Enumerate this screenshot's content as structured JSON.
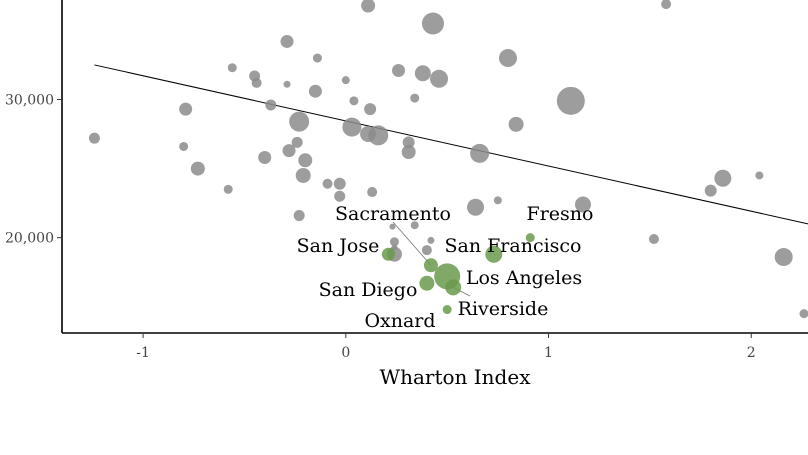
{
  "chart_data": {
    "type": "scatter",
    "title": "",
    "xlabel": "Wharton Index",
    "ylabel": "",
    "xlim": [
      -1.4,
      2.28
    ],
    "ylim": [
      13100,
      37200
    ],
    "x_ticks": [
      {
        "value": -1,
        "label": "-1"
      },
      {
        "value": 0,
        "label": "0"
      },
      {
        "value": 1,
        "label": "1"
      },
      {
        "value": 2,
        "label": "2"
      }
    ],
    "y_ticks": [
      {
        "value": 20000,
        "label": "20,000"
      },
      {
        "value": 30000,
        "label": "30,000"
      }
    ],
    "grid": false,
    "colors": {
      "other": "#8c8c8c",
      "california": "#6a9a4c",
      "trend": "#000000",
      "axis": "#000000"
    },
    "trend_line": {
      "x": [
        -1.24,
        2.28
      ],
      "y": [
        32500,
        21000
      ]
    },
    "series": [
      {
        "group": "other",
        "points": [
          {
            "x": 0.11,
            "y": 36800,
            "size": 14
          },
          {
            "x": 1.58,
            "y": 36900,
            "size": 10
          },
          {
            "x": 0.43,
            "y": 35500,
            "size": 22
          },
          {
            "x": -0.29,
            "y": 34200,
            "size": 13
          },
          {
            "x": 0.8,
            "y": 33000,
            "size": 18
          },
          {
            "x": -0.14,
            "y": 33000,
            "size": 9
          },
          {
            "x": -0.56,
            "y": 32300,
            "size": 9
          },
          {
            "x": -0.45,
            "y": 31700,
            "size": 11
          },
          {
            "x": -0.44,
            "y": 31200,
            "size": 10
          },
          {
            "x": 0.26,
            "y": 32100,
            "size": 13
          },
          {
            "x": 0.38,
            "y": 31900,
            "size": 16
          },
          {
            "x": 0.46,
            "y": 31500,
            "size": 18
          },
          {
            "x": 0.0,
            "y": 31400,
            "size": 8
          },
          {
            "x": -0.29,
            "y": 31100,
            "size": 7
          },
          {
            "x": -0.15,
            "y": 30600,
            "size": 13
          },
          {
            "x": 0.34,
            "y": 30100,
            "size": 9
          },
          {
            "x": 1.11,
            "y": 29900,
            "size": 28
          },
          {
            "x": -0.79,
            "y": 29300,
            "size": 13
          },
          {
            "x": -0.37,
            "y": 29600,
            "size": 11
          },
          {
            "x": 0.04,
            "y": 29900,
            "size": 9
          },
          {
            "x": 0.12,
            "y": 29300,
            "size": 12
          },
          {
            "x": -0.23,
            "y": 28400,
            "size": 20
          },
          {
            "x": 0.03,
            "y": 28000,
            "size": 19
          },
          {
            "x": 0.11,
            "y": 27500,
            "size": 16
          },
          {
            "x": 0.84,
            "y": 28200,
            "size": 15
          },
          {
            "x": 0.16,
            "y": 27400,
            "size": 20
          },
          {
            "x": -1.24,
            "y": 27200,
            "size": 11
          },
          {
            "x": -0.24,
            "y": 26900,
            "size": 11
          },
          {
            "x": 0.31,
            "y": 26900,
            "size": 12
          },
          {
            "x": -0.8,
            "y": 26600,
            "size": 9
          },
          {
            "x": -0.28,
            "y": 26300,
            "size": 13
          },
          {
            "x": 0.31,
            "y": 26200,
            "size": 14
          },
          {
            "x": 0.66,
            "y": 26100,
            "size": 19
          },
          {
            "x": -0.2,
            "y": 25600,
            "size": 14
          },
          {
            "x": -0.4,
            "y": 25800,
            "size": 13
          },
          {
            "x": -0.73,
            "y": 25000,
            "size": 14
          },
          {
            "x": -0.21,
            "y": 24500,
            "size": 15
          },
          {
            "x": 1.86,
            "y": 24300,
            "size": 17
          },
          {
            "x": 2.04,
            "y": 24500,
            "size": 8
          },
          {
            "x": -0.09,
            "y": 23900,
            "size": 10
          },
          {
            "x": -0.03,
            "y": 23900,
            "size": 12
          },
          {
            "x": -0.58,
            "y": 23500,
            "size": 9
          },
          {
            "x": 1.8,
            "y": 23400,
            "size": 12
          },
          {
            "x": -0.03,
            "y": 23000,
            "size": 11
          },
          {
            "x": 0.13,
            "y": 23300,
            "size": 10
          },
          {
            "x": 0.75,
            "y": 22700,
            "size": 8
          },
          {
            "x": 1.17,
            "y": 22400,
            "size": 16
          },
          {
            "x": 0.64,
            "y": 22200,
            "size": 17
          },
          {
            "x": -0.23,
            "y": 21600,
            "size": 11
          },
          {
            "x": 1.52,
            "y": 19900,
            "size": 10
          },
          {
            "x": 0.24,
            "y": 19700,
            "size": 9
          },
          {
            "x": 0.24,
            "y": 18800,
            "size": 15
          },
          {
            "x": 0.24,
            "y": 19300,
            "size": 6
          },
          {
            "x": 2.16,
            "y": 18600,
            "size": 18
          },
          {
            "x": 0.4,
            "y": 19100,
            "size": 10
          },
          {
            "x": 0.34,
            "y": 20900,
            "size": 8
          },
          {
            "x": 2.26,
            "y": 14500,
            "size": 9
          },
          {
            "x": 0.23,
            "y": 20800,
            "size": 6
          },
          {
            "x": 0.42,
            "y": 19800,
            "size": 7
          }
        ]
      },
      {
        "group": "california",
        "points": [
          {
            "name": "Fresno",
            "x": 0.91,
            "y": 20000,
            "size": 9
          },
          {
            "name": "Sacramento",
            "x": 0.42,
            "y": 18000,
            "size": 14
          },
          {
            "name": "San Jose",
            "x": 0.21,
            "y": 18800,
            "size": 13
          },
          {
            "name": "San Francisco",
            "x": 0.73,
            "y": 18800,
            "size": 17
          },
          {
            "name": "Los Angeles",
            "x": 0.5,
            "y": 17200,
            "size": 26
          },
          {
            "name": "San Diego",
            "x": 0.4,
            "y": 16700,
            "size": 15
          },
          {
            "name": "Riverside",
            "x": 0.53,
            "y": 16400,
            "size": 16
          },
          {
            "name": "Oxnard",
            "x": 0.5,
            "y": 14800,
            "size": 9
          }
        ]
      }
    ],
    "annotations": [
      {
        "text": "Sacramento",
        "anchor": "Sacramento"
      },
      {
        "text": "Fresno",
        "anchor": "Fresno"
      },
      {
        "text": "San Jose",
        "anchor": "San Jose"
      },
      {
        "text": "San Francisco",
        "anchor": "San Francisco"
      },
      {
        "text": "Los Angeles",
        "anchor": "Los Angeles"
      },
      {
        "text": "San Diego",
        "anchor": "San Diego"
      },
      {
        "text": "Riverside",
        "anchor": "Riverside"
      },
      {
        "text": "Oxnard",
        "anchor": "Oxnard"
      }
    ]
  }
}
